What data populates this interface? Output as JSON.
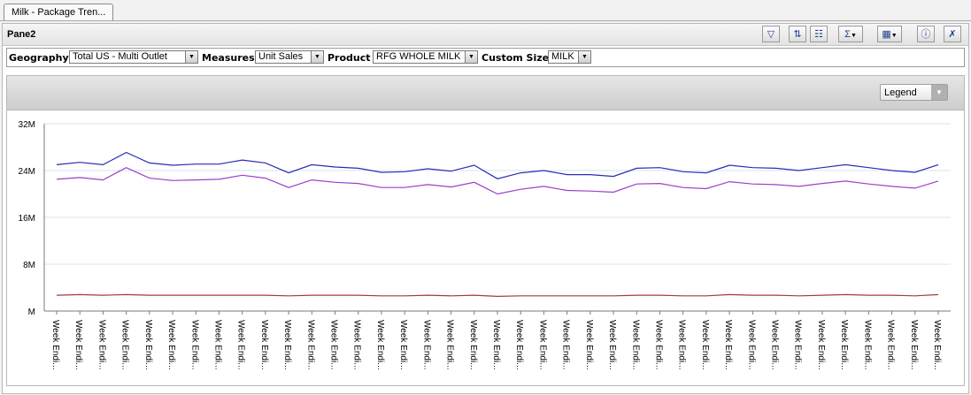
{
  "tab": {
    "label": "Milk - Package Tren..."
  },
  "pane": {
    "title": "Pane2"
  },
  "toolbar": {
    "buttons": [
      {
        "name": "filter-button",
        "glyph": "▽"
      },
      {
        "name": "sort-button",
        "glyph": "⇅"
      },
      {
        "name": "columns-button",
        "glyph": "☷"
      },
      {
        "name": "totals-button",
        "glyph": "Σ"
      },
      {
        "name": "grid-button",
        "glyph": "▦"
      },
      {
        "name": "info-button",
        "glyph": "ⓘ"
      },
      {
        "name": "tools-button",
        "glyph": "✗"
      }
    ]
  },
  "filters": {
    "geography_label": "Geography",
    "geography_value": "Total US - Multi Outlet",
    "measures_label": "Measures",
    "measures_value": "Unit Sales",
    "product_label": "Product",
    "product_value": "RFG WHOLE MILK",
    "custom_size_label": "Custom Size",
    "custom_size_value": "MILK"
  },
  "legend": {
    "label": "Legend"
  },
  "colors": {
    "series1": "#2a2ab8",
    "series2": "#9b3fc9",
    "series3": "#a33a3a",
    "grid": "#d6e6f2"
  },
  "chart_data": {
    "type": "line",
    "x_tick_label": "Week Endi...",
    "categories_count": 39,
    "yticks": [
      "32M",
      "24M",
      "16M",
      "8M",
      "M"
    ],
    "ylim": [
      0,
      32000000
    ],
    "grid": true,
    "series": [
      {
        "values": [
          25.0,
          25.4,
          25.0,
          27.1,
          25.3,
          24.9,
          25.1,
          25.1,
          25.8,
          25.3,
          23.6,
          25.0,
          24.6,
          24.4,
          23.7,
          23.8,
          24.3,
          23.9,
          24.9,
          22.6,
          23.6,
          24.0,
          23.3,
          23.3,
          23.0,
          24.4,
          24.5,
          23.8,
          23.6,
          24.9,
          24.5,
          24.4,
          24.0,
          24.5,
          25.0,
          24.5,
          24.0,
          23.7,
          25.0
        ]
      },
      {
        "values": [
          22.5,
          22.8,
          22.4,
          24.5,
          22.7,
          22.3,
          22.4,
          22.5,
          23.2,
          22.7,
          21.1,
          22.4,
          22.0,
          21.8,
          21.1,
          21.1,
          21.6,
          21.2,
          22.0,
          20.0,
          20.8,
          21.3,
          20.6,
          20.5,
          20.3,
          21.7,
          21.8,
          21.1,
          20.9,
          22.1,
          21.7,
          21.6,
          21.3,
          21.8,
          22.2,
          21.7,
          21.3,
          21.0,
          22.2
        ]
      },
      {
        "values": [
          2.7,
          2.8,
          2.7,
          2.8,
          2.7,
          2.7,
          2.7,
          2.7,
          2.7,
          2.7,
          2.6,
          2.7,
          2.7,
          2.7,
          2.6,
          2.6,
          2.7,
          2.6,
          2.7,
          2.5,
          2.6,
          2.6,
          2.6,
          2.6,
          2.6,
          2.7,
          2.7,
          2.6,
          2.6,
          2.8,
          2.7,
          2.7,
          2.6,
          2.7,
          2.8,
          2.7,
          2.7,
          2.6,
          2.8
        ]
      }
    ]
  }
}
